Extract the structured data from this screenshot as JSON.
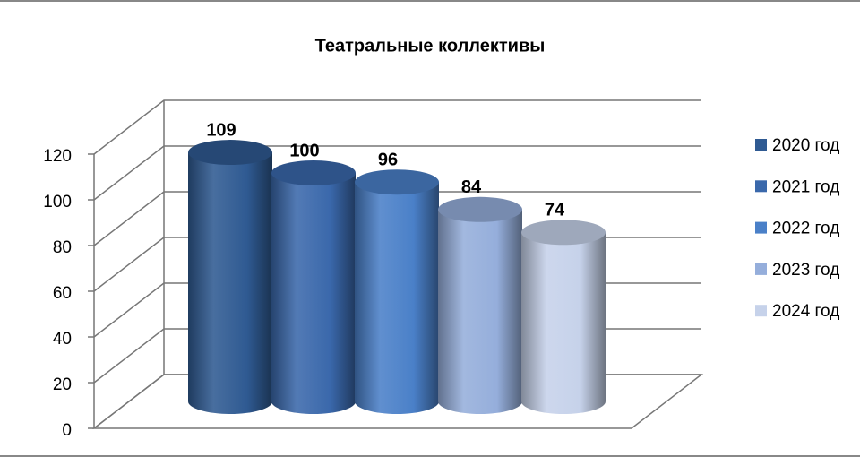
{
  "chart_data": {
    "type": "bar3d-cylinder",
    "title": "Театральные коллективы",
    "series": [
      {
        "name": "2020 год",
        "color": "#2f5a92",
        "values": [
          109
        ]
      },
      {
        "name": "2021 год",
        "color": "#3a68ab",
        "values": [
          100
        ]
      },
      {
        "name": "2022 год",
        "color": "#4a80c8",
        "values": [
          96
        ]
      },
      {
        "name": "2023 год",
        "color": "#95aedb",
        "values": [
          84
        ]
      },
      {
        "name": "2024 год",
        "color": "#c6d2ea",
        "values": [
          74
        ]
      }
    ],
    "ylim": [
      0,
      120
    ],
    "yticks": [
      0,
      20,
      40,
      60,
      80,
      100,
      120
    ],
    "grid": true
  }
}
